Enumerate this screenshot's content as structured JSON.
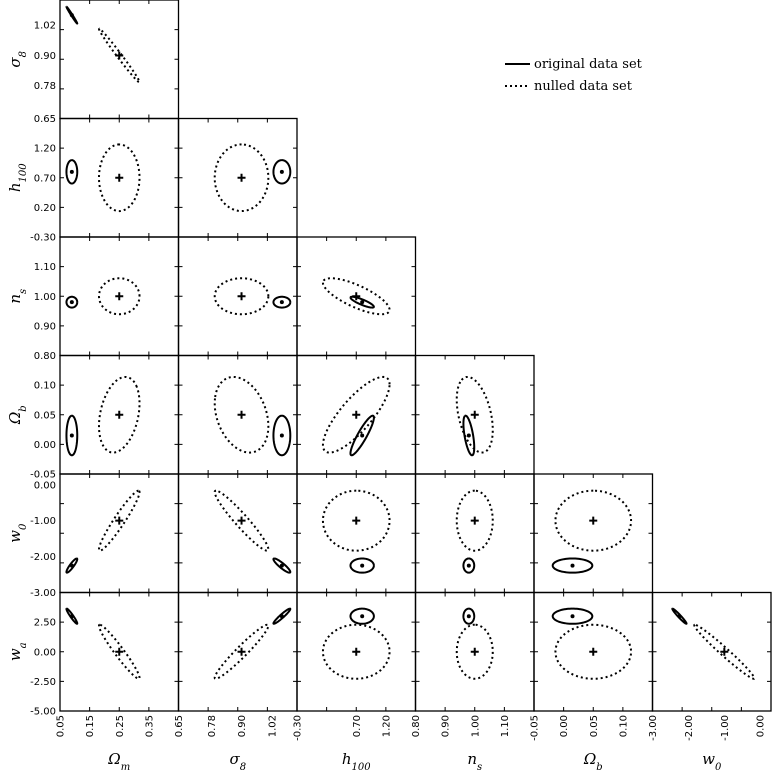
{
  "chart_data": {
    "type": "scatter",
    "subtype": "triangle-confidence-ellipses",
    "legend": {
      "placement": "top-right",
      "entries": [
        {
          "label": "original data set",
          "style": "solid"
        },
        {
          "label": "nulled data set",
          "style": "dotted"
        }
      ]
    },
    "parameters": [
      {
        "name": "Omega_m",
        "xlabel_main": "Ω",
        "xlabel_sub": "m",
        "range": [
          0.05,
          0.45
        ],
        "ticks": [
          "0.05",
          "0.15",
          "0.25",
          "0.35"
        ],
        "tick_values": [
          0.05,
          0.15,
          0.25,
          0.35
        ]
      },
      {
        "name": "sigma_8",
        "xlabel_main": "σ",
        "xlabel_sub": "8",
        "range": [
          0.65,
          1.12
        ],
        "ticks": [
          "0.65",
          "0.78",
          "0.90",
          "1.02"
        ],
        "tick_values": [
          0.65,
          0.78,
          0.9,
          1.02
        ]
      },
      {
        "name": "h_100",
        "xlabel_main": "h",
        "xlabel_sub": "100",
        "range": [
          -0.3,
          1.7
        ],
        "ticks": [
          "-0.30",
          "0.20",
          "0.70",
          "1.20"
        ],
        "tick_values": [
          -0.3,
          0.2,
          0.7,
          1.2
        ]
      },
      {
        "name": "n_s",
        "xlabel_main": "n",
        "xlabel_sub": "s",
        "range": [
          0.8,
          1.2
        ],
        "ticks": [
          "0.80",
          "0.90",
          "1.00",
          "1.10"
        ],
        "tick_values": [
          0.8,
          0.9,
          1.0,
          1.1
        ]
      },
      {
        "name": "Omega_b",
        "xlabel_main": "Ω",
        "xlabel_sub": "b",
        "range": [
          -0.05,
          0.15
        ],
        "ticks": [
          "-0.05",
          "0.00",
          "0.05",
          "0.10"
        ],
        "tick_values": [
          -0.05,
          0.0,
          0.05,
          0.1
        ]
      },
      {
        "name": "w_0",
        "xlabel_main": "w",
        "xlabel_sub": "0",
        "range": [
          -3.0,
          0.3
        ],
        "ticks": [
          "-3.00",
          "-2.00",
          "-1.00",
          "0.00"
        ],
        "tick_values": [
          -3.0,
          -2.0,
          -1.0,
          0.0
        ]
      },
      {
        "name": "w_a",
        "xlabel_main": "w",
        "xlabel_sub": "a",
        "range": [
          -5.0,
          5.0
        ],
        "ticks": [
          "-5.00",
          "-2.50",
          "0.00",
          "2.50"
        ],
        "tick_values": [
          -5.0,
          -2.5,
          0.0,
          2.5
        ]
      }
    ],
    "y_axis_ticks": {
      "sigma_8": [
        "0.65",
        "0.78",
        "0.90",
        "1.02"
      ],
      "h_100": [
        "-0.30",
        "0.20",
        "0.70",
        "1.20"
      ],
      "n_s": [
        "0.80",
        "0.90",
        "1.00",
        "1.10"
      ],
      "Omega_b": [
        "-0.05",
        "0.00",
        "0.05",
        "0.10"
      ],
      "w_0": [
        "-3.00",
        "-2.00",
        "-1.00",
        "0.00"
      ],
      "w_a": [
        "-5.00",
        "-2.50",
        "0.00",
        "2.50"
      ]
    },
    "x_axis_ticks": {
      "Omega_m": [
        "0.05",
        "0.15",
        "0.25",
        "0.35"
      ],
      "sigma_8": [
        "0.65",
        "0.78",
        "0.90",
        "1.02"
      ],
      "h_100": [
        "-0.30",
        "0.70",
        "1.20"
      ],
      "n_s": [
        "0.80",
        "0.90",
        "1.00",
        "1.10"
      ],
      "Omega_b": [
        "-0.05",
        "0.00",
        "0.05",
        "0.10"
      ],
      "w_0": [
        "-3.00",
        "-2.00",
        "-1.00",
        "0.00"
      ]
    },
    "fiducial": {
      "original": {
        "Omega_m": 0.09,
        "sigma_8": 1.06,
        "h_100": 0.8,
        "n_s": 0.98,
        "Omega_b": 0.015,
        "w_0": -2.25,
        "w_a": 3.0
      },
      "nulled": {
        "Omega_m": 0.25,
        "sigma_8": 0.9,
        "h_100": 0.7,
        "n_s": 1.0,
        "Omega_b": 0.05,
        "w_0": -1.0,
        "w_a": 0.0
      }
    },
    "sigma": {
      "original": {
        "Omega_m": 0.012,
        "sigma_8": 0.022,
        "h_100": 0.13,
        "n_s": 0.012,
        "Omega_b": 0.022,
        "w_0": 0.13,
        "w_a": 0.42
      },
      "nulled": {
        "Omega_m": 0.045,
        "sigma_8": 0.07,
        "h_100": 0.37,
        "n_s": 0.04,
        "Omega_b": 0.042,
        "w_0": 0.55,
        "w_a": 1.5
      }
    },
    "correlations": {
      "original": {
        "sigma_8|Omega_m": -0.99,
        "w_0|Omega_m": 0.9,
        "w_0|sigma_8": -0.9,
        "w_a|Omega_m": -0.95,
        "w_a|sigma_8": 0.95,
        "w_a|w_0": -0.97,
        "n_s|h_100": -0.85,
        "Omega_b|h_100": 0.9,
        "Omega_b|n_s": -0.6
      },
      "nulled": {
        "sigma_8|Omega_m": -0.99,
        "w_0|Omega_m": 0.95,
        "w_0|sigma_8": -0.95,
        "w_a|Omega_m": -0.96,
        "w_a|sigma_8": 0.96,
        "w_a|w_0": -0.98,
        "n_s|h_100": -0.75,
        "Omega_b|h_100": 0.8,
        "Omega_b|n_s": -0.4,
        "Omega_b|Omega_m": 0.3,
        "Omega_b|sigma_8": -0.3
      }
    }
  }
}
